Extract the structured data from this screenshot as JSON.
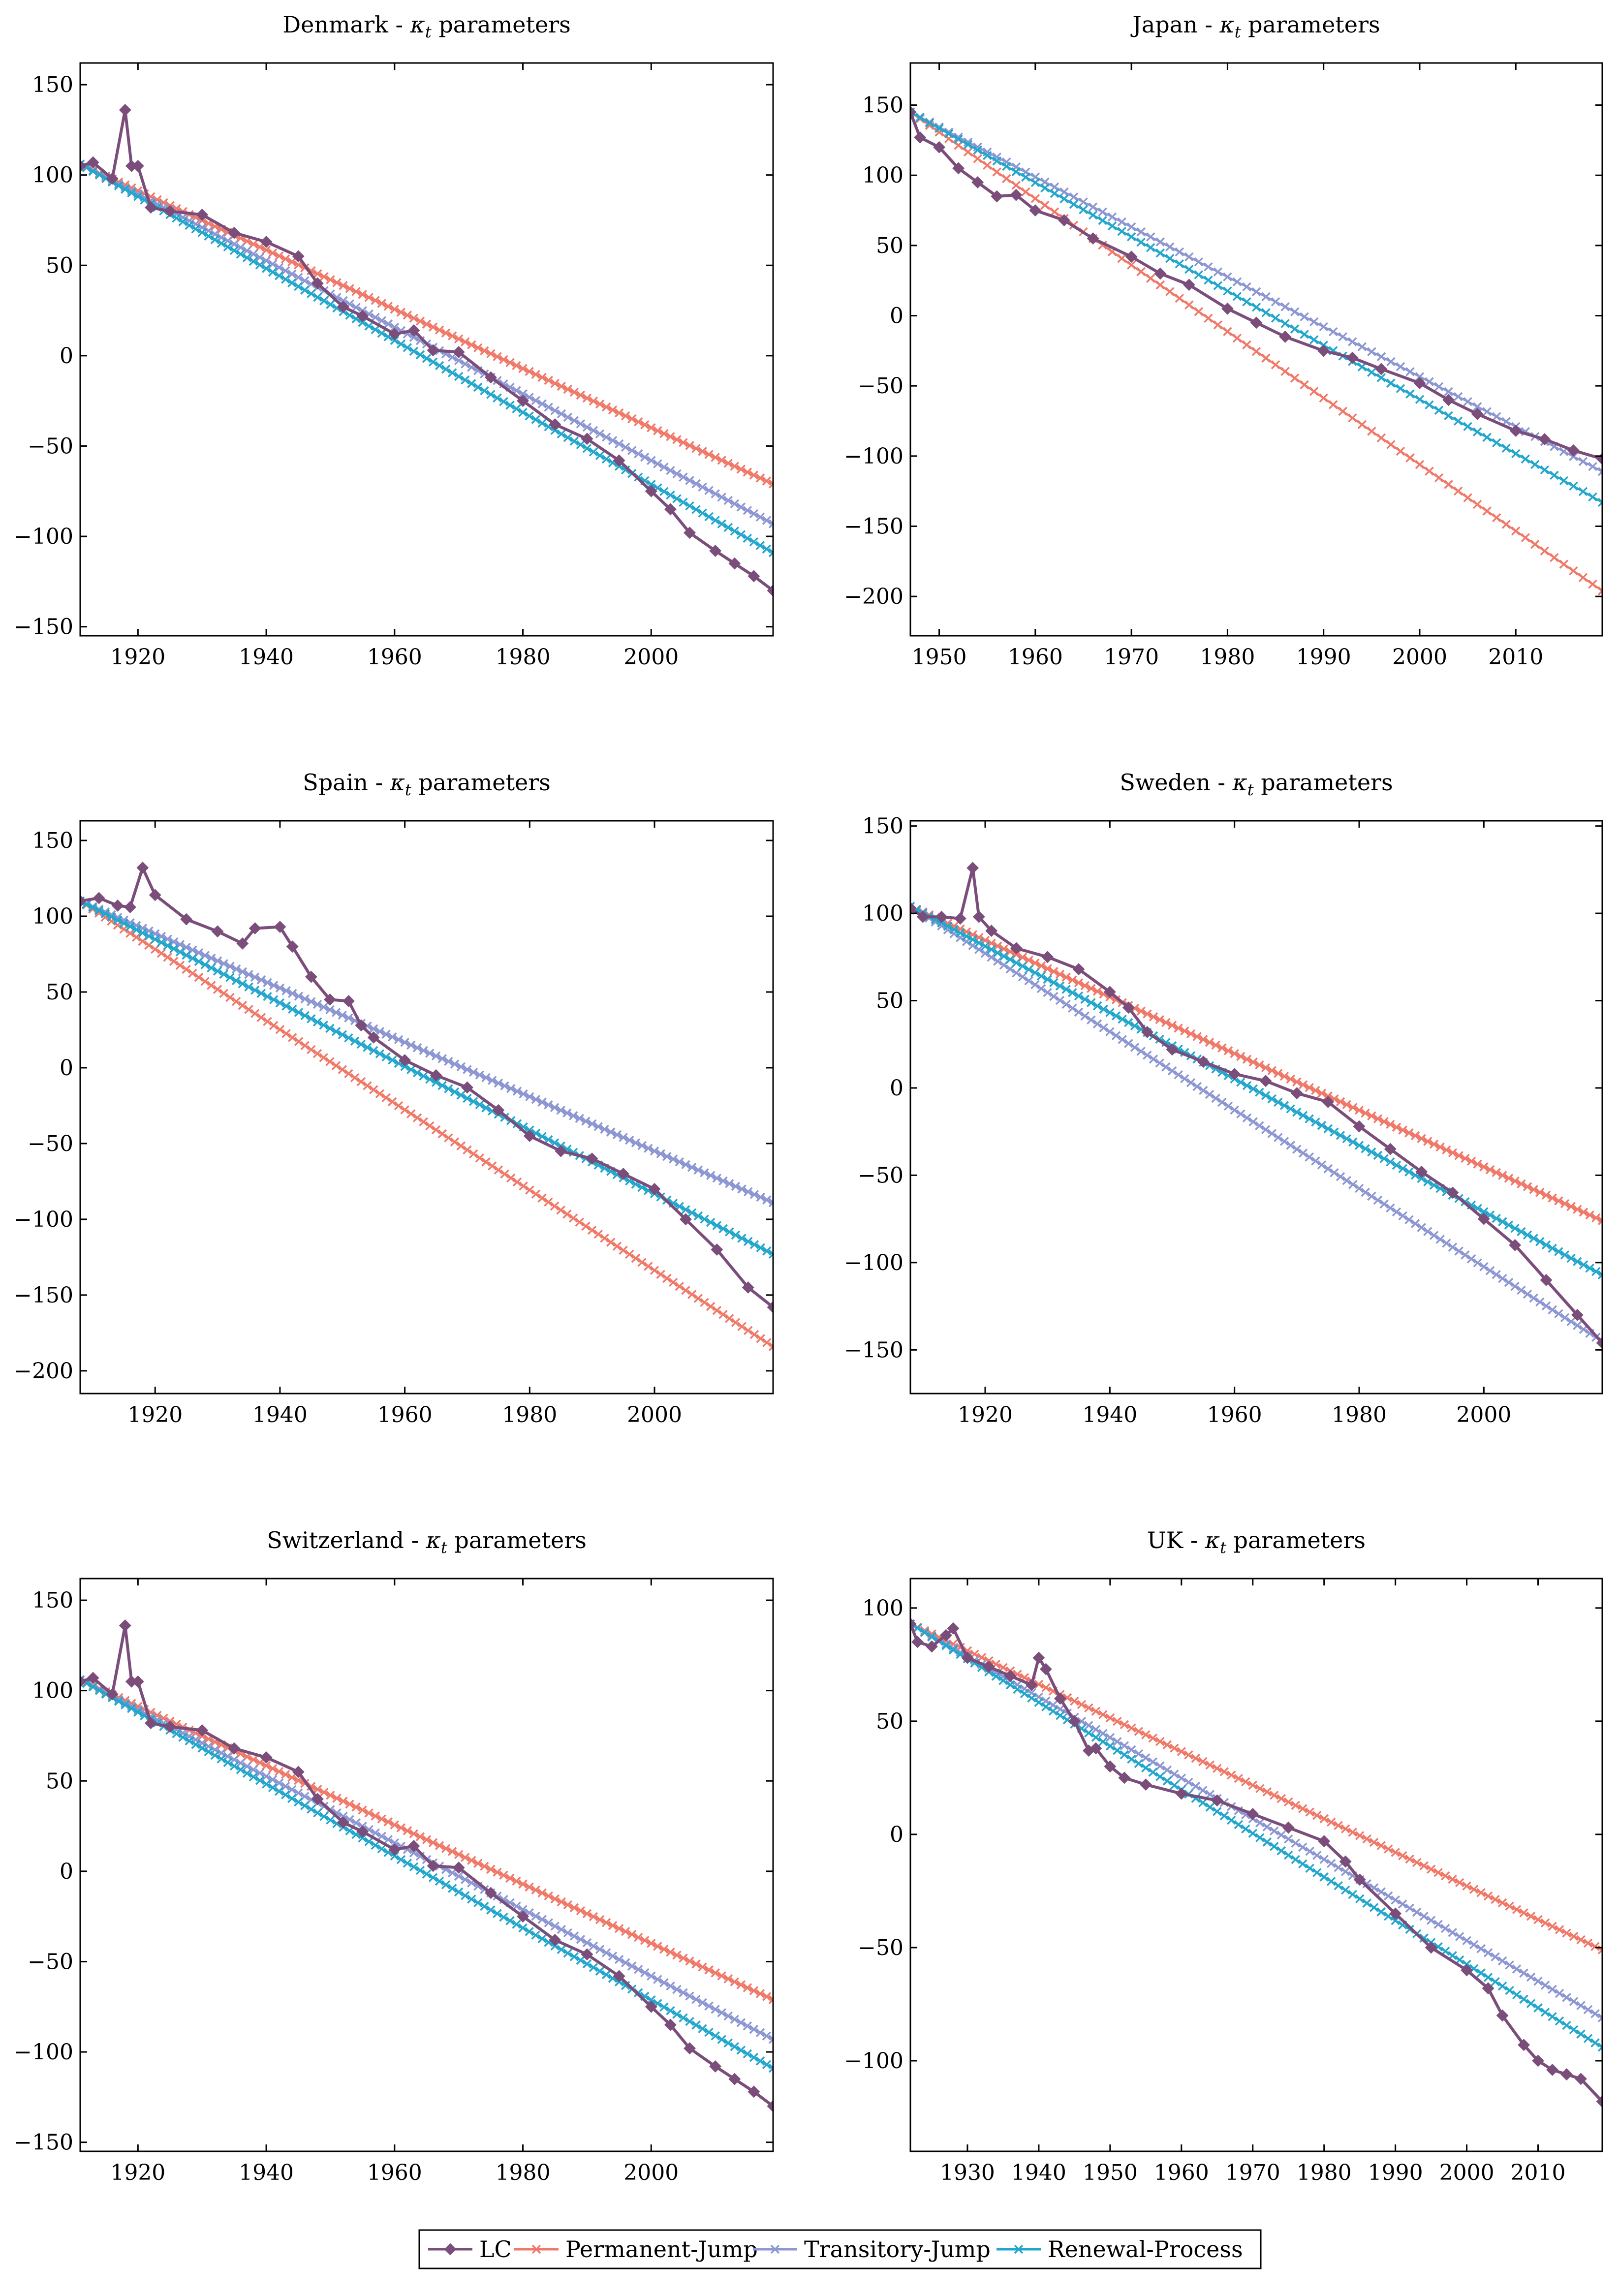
{
  "figure": {
    "legend": [
      {
        "name": "LC",
        "color": "#7a4d7a",
        "marker": "diamond"
      },
      {
        "name": "Permanent-Jump",
        "color": "#f07868",
        "marker": "x"
      },
      {
        "name": "Transitory-Jump",
        "color": "#8c96d2",
        "marker": "x"
      },
      {
        "name": "Renewal-Process",
        "color": "#22a6cc",
        "marker": "x"
      }
    ]
  },
  "chart_data": [
    {
      "type": "line",
      "title": "Denmark - κt parameters",
      "title_country": "Denmark",
      "xlim": [
        1911,
        2019
      ],
      "ylim": [
        -155,
        162
      ],
      "xticks": [
        1920,
        1940,
        1960,
        1980,
        2000
      ],
      "yticks": [
        150,
        100,
        50,
        0,
        -50,
        -100,
        -150
      ],
      "series": [
        {
          "name": "LC",
          "x": [
            1911,
            1913,
            1916,
            1918,
            1919,
            1920,
            1922,
            1925,
            1930,
            1935,
            1940,
            1945,
            1948,
            1952,
            1955,
            1960,
            1963,
            1966,
            1970,
            1975,
            1980,
            1985,
            1990,
            1995,
            2000,
            2003,
            2006,
            2010,
            2013,
            2016,
            2019
          ],
          "y": [
            105,
            107,
            98,
            136,
            105,
            105,
            82,
            80,
            78,
            68,
            63,
            55,
            40,
            27,
            22,
            12,
            14,
            3,
            2,
            -12,
            -25,
            -38,
            -46,
            -58,
            -75,
            -85,
            -98,
            -108,
            -115,
            -122,
            -130
          ]
        },
        {
          "name": "Permanent-Jump",
          "x": [
            1911,
            2019
          ],
          "y": [
            106,
            -71
          ]
        },
        {
          "name": "Transitory-Jump",
          "x": [
            1911,
            2019
          ],
          "y": [
            106,
            -93
          ]
        },
        {
          "name": "Renewal-Process",
          "x": [
            1911,
            2019
          ],
          "y": [
            106,
            -109
          ]
        }
      ]
    },
    {
      "type": "line",
      "title": "Japan - κt parameters",
      "title_country": "Japan",
      "xlim": [
        1947,
        2019
      ],
      "ylim": [
        -228,
        180
      ],
      "xticks": [
        1950,
        1960,
        1970,
        1980,
        1990,
        2000,
        2010
      ],
      "yticks": [
        150,
        100,
        50,
        0,
        -50,
        -100,
        -150,
        -200
      ],
      "series": [
        {
          "name": "LC",
          "x": [
            1947,
            1948,
            1950,
            1952,
            1954,
            1956,
            1958,
            1960,
            1963,
            1966,
            1970,
            1973,
            1976,
            1980,
            1983,
            1986,
            1990,
            1993,
            1996,
            2000,
            2003,
            2006,
            2010,
            2013,
            2016,
            2019
          ],
          "y": [
            145,
            127,
            120,
            105,
            95,
            85,
            86,
            75,
            68,
            55,
            42,
            30,
            22,
            5,
            -5,
            -15,
            -25,
            -30,
            -38,
            -48,
            -60,
            -70,
            -82,
            -88,
            -96,
            -102
          ]
        },
        {
          "name": "Permanent-Jump",
          "x": [
            1947,
            2019
          ],
          "y": [
            145,
            -196
          ]
        },
        {
          "name": "Transitory-Jump",
          "x": [
            1947,
            2019
          ],
          "y": [
            145,
            -111
          ]
        },
        {
          "name": "Renewal-Process",
          "x": [
            1947,
            2019
          ],
          "y": [
            145,
            -133
          ]
        }
      ]
    },
    {
      "type": "line",
      "title": "Spain - κt parameters",
      "title_country": "Spain",
      "xlim": [
        1908,
        2019
      ],
      "ylim": [
        -215,
        163
      ],
      "xticks": [
        1920,
        1940,
        1960,
        1980,
        2000
      ],
      "yticks": [
        150,
        100,
        50,
        0,
        -50,
        -100,
        -150,
        -200
      ],
      "series": [
        {
          "name": "LC",
          "x": [
            1908,
            1911,
            1914,
            1916,
            1918,
            1920,
            1925,
            1930,
            1934,
            1936,
            1940,
            1942,
            1945,
            1948,
            1951,
            1953,
            1955,
            1960,
            1965,
            1970,
            1975,
            1980,
            1985,
            1990,
            1995,
            2000,
            2005,
            2010,
            2015,
            2019
          ],
          "y": [
            110,
            112,
            107,
            106,
            132,
            114,
            98,
            90,
            82,
            92,
            93,
            80,
            60,
            45,
            44,
            28,
            20,
            5,
            -5,
            -13,
            -28,
            -45,
            -55,
            -60,
            -70,
            -80,
            -100,
            -120,
            -145,
            -158
          ]
        },
        {
          "name": "Permanent-Jump",
          "x": [
            1908,
            2019
          ],
          "y": [
            110,
            -184
          ]
        },
        {
          "name": "Transitory-Jump",
          "x": [
            1908,
            2019
          ],
          "y": [
            110,
            -89
          ]
        },
        {
          "name": "Renewal-Process",
          "x": [
            1908,
            2019
          ],
          "y": [
            110,
            -123
          ]
        }
      ]
    },
    {
      "type": "line",
      "title": "Sweden - κt parameters",
      "title_country": "Sweden",
      "xlim": [
        1908,
        2019
      ],
      "ylim": [
        -175,
        153
      ],
      "xticks": [
        1920,
        1940,
        1960,
        1980,
        2000
      ],
      "yticks": [
        150,
        100,
        50,
        0,
        -50,
        -100,
        -150
      ],
      "series": [
        {
          "name": "LC",
          "x": [
            1908,
            1910,
            1913,
            1916,
            1918,
            1919,
            1921,
            1925,
            1930,
            1935,
            1940,
            1943,
            1946,
            1950,
            1955,
            1960,
            1965,
            1970,
            1975,
            1980,
            1985,
            1990,
            1995,
            2000,
            2005,
            2010,
            2015,
            2019
          ],
          "y": [
            103,
            98,
            98,
            97,
            126,
            98,
            90,
            80,
            75,
            68,
            55,
            46,
            32,
            22,
            15,
            8,
            4,
            -3,
            -8,
            -22,
            -35,
            -48,
            -60,
            -75,
            -90,
            -110,
            -130,
            -146
          ]
        },
        {
          "name": "Permanent-Jump",
          "x": [
            1908,
            2019
          ],
          "y": [
            104,
            -76
          ]
        },
        {
          "name": "Transitory-Jump",
          "x": [
            1908,
            2019
          ],
          "y": [
            104,
            -145
          ]
        },
        {
          "name": "Renewal-Process",
          "x": [
            1908,
            2019
          ],
          "y": [
            104,
            -107
          ]
        }
      ]
    },
    {
      "type": "line",
      "title": "Switzerland - κt parameters",
      "title_country": "Switzerland",
      "xlim": [
        1911,
        2019
      ],
      "ylim": [
        -155,
        162
      ],
      "xticks": [
        1920,
        1940,
        1960,
        1980,
        2000
      ],
      "yticks": [
        150,
        100,
        50,
        0,
        -50,
        -100,
        -150
      ],
      "series": [
        {
          "name": "LC",
          "x": [
            1911,
            1913,
            1916,
            1918,
            1919,
            1920,
            1922,
            1925,
            1930,
            1935,
            1940,
            1945,
            1948,
            1952,
            1955,
            1960,
            1963,
            1966,
            1970,
            1975,
            1980,
            1985,
            1990,
            1995,
            2000,
            2003,
            2006,
            2010,
            2013,
            2016,
            2019
          ],
          "y": [
            105,
            107,
            98,
            136,
            105,
            105,
            82,
            80,
            78,
            68,
            63,
            55,
            40,
            27,
            22,
            12,
            14,
            3,
            2,
            -12,
            -25,
            -38,
            -46,
            -58,
            -75,
            -85,
            -98,
            -108,
            -115,
            -122,
            -130
          ]
        },
        {
          "name": "Permanent-Jump",
          "x": [
            1911,
            2019
          ],
          "y": [
            106,
            -71
          ]
        },
        {
          "name": "Transitory-Jump",
          "x": [
            1911,
            2019
          ],
          "y": [
            106,
            -93
          ]
        },
        {
          "name": "Renewal-Process",
          "x": [
            1911,
            2019
          ],
          "y": [
            106,
            -109
          ]
        }
      ]
    },
    {
      "type": "line",
      "title": "UK - κt parameters",
      "title_country": "UK",
      "xlim": [
        1922,
        2019
      ],
      "ylim": [
        -140,
        113
      ],
      "xticks": [
        1930,
        1940,
        1950,
        1960,
        1970,
        1980,
        1990,
        2000,
        2010
      ],
      "yticks": [
        100,
        50,
        0,
        -50,
        -100
      ],
      "series": [
        {
          "name": "LC",
          "x": [
            1922,
            1923,
            1925,
            1927,
            1928,
            1930,
            1933,
            1936,
            1939,
            1940,
            1941,
            1943,
            1945,
            1947,
            1948,
            1950,
            1952,
            1955,
            1960,
            1965,
            1970,
            1975,
            1980,
            1983,
            1985,
            1990,
            1995,
            2000,
            2003,
            2005,
            2008,
            2010,
            2012,
            2014,
            2016,
            2019
          ],
          "y": [
            93,
            85,
            83,
            88,
            91,
            78,
            74,
            70,
            66,
            78,
            73,
            60,
            50,
            37,
            38,
            30,
            25,
            22,
            18,
            15,
            9,
            3,
            -3,
            -12,
            -20,
            -35,
            -50,
            -60,
            -68,
            -80,
            -93,
            -100,
            -104,
            -106,
            -108,
            -118
          ]
        },
        {
          "name": "Permanent-Jump",
          "x": [
            1922,
            2019
          ],
          "y": [
            93,
            -51
          ]
        },
        {
          "name": "Transitory-Jump",
          "x": [
            1922,
            2019
          ],
          "y": [
            93,
            -81
          ]
        },
        {
          "name": "Renewal-Process",
          "x": [
            1922,
            2019
          ],
          "y": [
            93,
            -94
          ]
        }
      ]
    }
  ]
}
